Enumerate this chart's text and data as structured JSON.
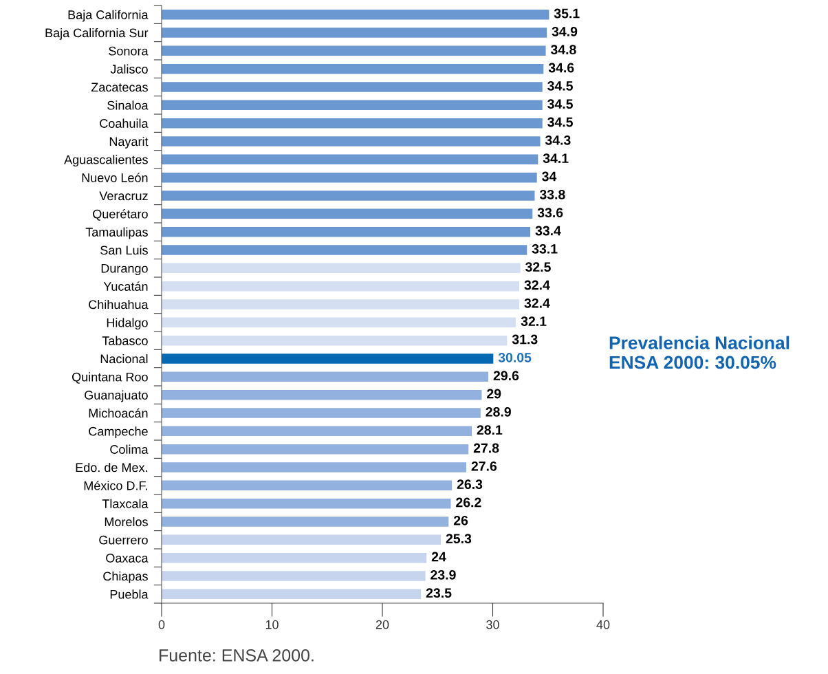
{
  "chart_data": {
    "type": "bar",
    "orientation": "horizontal",
    "categories": [
      "Baja California",
      "Baja California Sur",
      "Sonora",
      "Jalisco",
      "Zacatecas",
      "Sinaloa",
      "Coahuila",
      "Nayarit",
      "Aguascalientes",
      "Nuevo León",
      "Veracruz",
      "Querétaro",
      "Tamaulipas",
      "San Luis",
      "Durango",
      "Yucatán",
      "Chihuahua",
      "Hidalgo",
      "Tabasco",
      "Nacional",
      "Quintana Roo",
      "Guanajuato",
      "Michoacán",
      "Campeche",
      "Colima",
      "Edo. de Mex.",
      "México D.F.",
      "Tlaxcala",
      "Morelos",
      "Guerrero",
      "Oaxaca",
      "Chiapas",
      "Puebla"
    ],
    "values": [
      35.1,
      34.9,
      34.8,
      34.6,
      34.5,
      34.5,
      34.5,
      34.3,
      34.1,
      34,
      33.8,
      33.6,
      33.4,
      33.1,
      32.5,
      32.4,
      32.4,
      32.1,
      31.3,
      30.05,
      29.6,
      29,
      28.9,
      28.1,
      27.8,
      27.6,
      26.3,
      26.2,
      26,
      25.3,
      24,
      23.9,
      23.5
    ],
    "colors": [
      "#6b98d0",
      "#6b98d0",
      "#6b98d0",
      "#6b98d0",
      "#6b98d0",
      "#6b98d0",
      "#6b98d0",
      "#6b98d0",
      "#6b98d0",
      "#6b98d0",
      "#6b98d0",
      "#6b98d0",
      "#6b98d0",
      "#6b98d0",
      "#d5dff2",
      "#d5dff2",
      "#d5dff2",
      "#d5dff2",
      "#d5dff2",
      "#0568b3",
      "#93b1de",
      "#93b1de",
      "#93b1de",
      "#93b1de",
      "#93b1de",
      "#93b1de",
      "#93b1de",
      "#93b1de",
      "#93b1de",
      "#c6d4ee",
      "#c6d4ee",
      "#c6d4ee",
      "#c6d4ee"
    ],
    "xlim": [
      0,
      40
    ],
    "xticks": [
      0,
      10,
      20,
      30,
      40
    ],
    "data_labels": true,
    "grid": false,
    "annotations": [
      "Prevalencia Nacional\nENSA 2000: 30.05%",
      "Fuente: ENSA 2000."
    ]
  }
}
